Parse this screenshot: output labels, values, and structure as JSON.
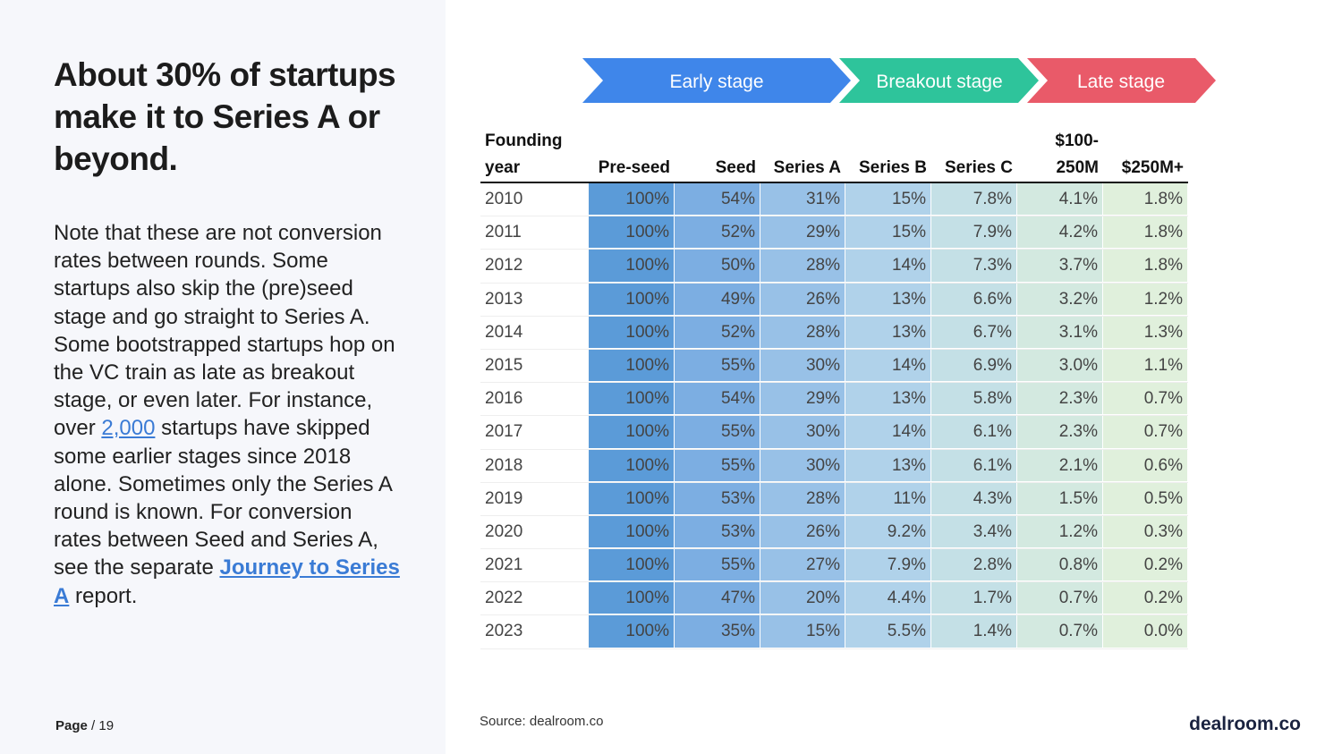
{
  "header": {
    "title": "About 30% of startups make it to Series A or beyond."
  },
  "body": {
    "segments": [
      {
        "text": "Note that these are not conversion rates between rounds. Some startups also skip the (pre)seed stage and go straight to Series A. Some bootstrapped startups hop on the VC train as late as breakout stage, or even later. For instance, over "
      },
      {
        "link": "2,000"
      },
      {
        "text": " startups have skipped some earlier stages since 2018 alone. Sometimes only the Series A round is known. For conversion rates between Seed and Series A, see the separate "
      },
      {
        "link": "Journey to Series A"
      },
      {
        "text": " report."
      }
    ]
  },
  "footer": {
    "page_label": "Page",
    "page_number": "/ 19",
    "source": "Source: dealroom.co",
    "brand": "dealroom.co"
  },
  "stages": [
    "Early stage",
    "Breakout stage",
    "Late stage"
  ],
  "table": {
    "columns": [
      "Founding year",
      "Pre-seed",
      "Seed",
      "Series A",
      "Series B",
      "Series C",
      "$100-250M",
      "$250M+"
    ],
    "rows": [
      [
        "2010",
        "100%",
        "54%",
        "31%",
        "15%",
        "7.8%",
        "4.1%",
        "1.8%"
      ],
      [
        "2011",
        "100%",
        "52%",
        "29%",
        "15%",
        "7.9%",
        "4.2%",
        "1.8%"
      ],
      [
        "2012",
        "100%",
        "50%",
        "28%",
        "14%",
        "7.3%",
        "3.7%",
        "1.8%"
      ],
      [
        "2013",
        "100%",
        "49%",
        "26%",
        "13%",
        "6.6%",
        "3.2%",
        "1.2%"
      ],
      [
        "2014",
        "100%",
        "52%",
        "28%",
        "13%",
        "6.7%",
        "3.1%",
        "1.3%"
      ],
      [
        "2015",
        "100%",
        "55%",
        "30%",
        "14%",
        "6.9%",
        "3.0%",
        "1.1%"
      ],
      [
        "2016",
        "100%",
        "54%",
        "29%",
        "13%",
        "5.8%",
        "2.3%",
        "0.7%"
      ],
      [
        "2017",
        "100%",
        "55%",
        "30%",
        "14%",
        "6.1%",
        "2.3%",
        "0.7%"
      ],
      [
        "2018",
        "100%",
        "55%",
        "30%",
        "13%",
        "6.1%",
        "2.1%",
        "0.6%"
      ],
      [
        "2019",
        "100%",
        "53%",
        "28%",
        "11%",
        "4.3%",
        "1.5%",
        "0.5%"
      ],
      [
        "2020",
        "100%",
        "53%",
        "26%",
        "9.2%",
        "3.4%",
        "1.2%",
        "0.3%"
      ],
      [
        "2021",
        "100%",
        "55%",
        "27%",
        "7.9%",
        "2.8%",
        "0.8%",
        "0.2%"
      ],
      [
        "2022",
        "100%",
        "47%",
        "20%",
        "4.4%",
        "1.7%",
        "0.7%",
        "0.2%"
      ],
      [
        "2023",
        "100%",
        "35%",
        "15%",
        "5.5%",
        "1.4%",
        "0.7%",
        "0.0%"
      ]
    ]
  }
}
